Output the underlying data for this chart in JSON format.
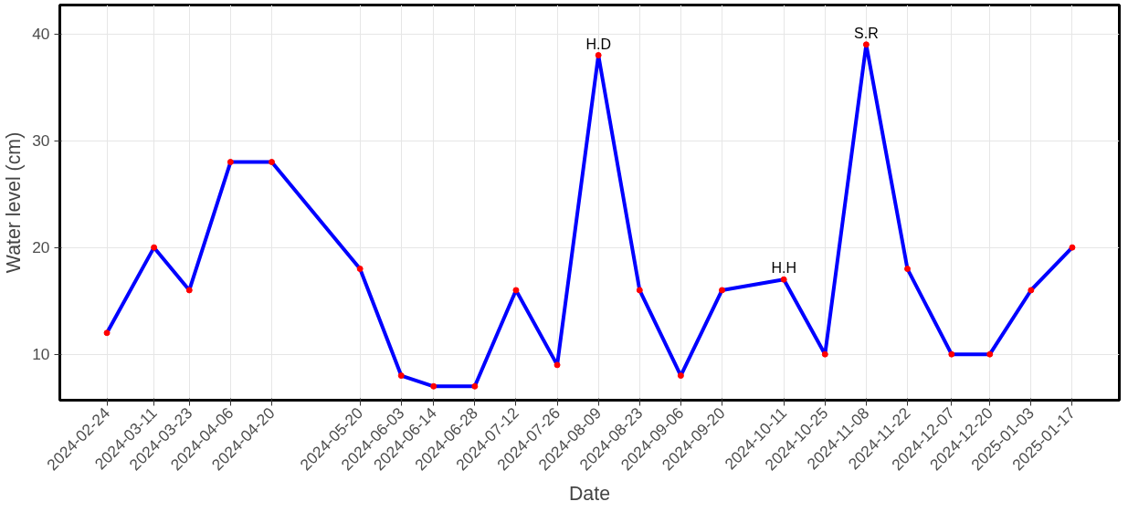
{
  "chart_data": {
    "type": "line",
    "xlabel": "Date",
    "ylabel": "Water level (cm)",
    "x": [
      "2024-02-24",
      "2024-03-11",
      "2024-03-23",
      "2024-04-06",
      "2024-04-20",
      "2024-05-20",
      "2024-06-03",
      "2024-06-14",
      "2024-06-28",
      "2024-07-12",
      "2024-07-26",
      "2024-08-09",
      "2024-08-23",
      "2024-09-06",
      "2024-09-20",
      "2024-10-11",
      "2024-10-25",
      "2024-11-08",
      "2024-11-22",
      "2024-12-07",
      "2024-12-20",
      "2025-01-03",
      "2025-01-17"
    ],
    "series": [
      {
        "color": "#0000ff",
        "colors": [
          "#ff0000",
          "#ff0000",
          "#ff0000",
          "#ff0000",
          "#ff0000",
          "#ff0000",
          "#ff0000",
          "#ff0000",
          "#ff0000",
          "#ff0000",
          "#ff0000",
          "#ff0000",
          "#ff0000",
          "#ff0000",
          "#ff0000",
          "#ff0000",
          "#ff0000",
          "#ff0000",
          "#ff0000",
          "#ff0000",
          "#ff0000",
          "#ff0000",
          "#ff0000"
        ],
        "values": [
          12,
          20,
          16,
          28,
          28,
          18,
          8,
          7,
          7,
          16,
          9,
          38,
          16,
          8,
          16,
          17,
          10,
          39,
          18,
          10,
          10,
          16,
          20
        ]
      }
    ],
    "xlim": [
      "2024-02-08",
      "2025-02-02"
    ],
    "xticks": [
      {
        "value": "2024-02-24",
        "label": "2024-02-24"
      },
      {
        "value": "2024-03-11",
        "label": "2024-03-11"
      },
      {
        "value": "2024-03-23",
        "label": "2024-03-23"
      },
      {
        "value": "2024-04-06",
        "label": "2024-04-06"
      },
      {
        "value": "2024-04-20",
        "label": "2024-04-20"
      },
      {
        "value": "2024-05-20",
        "label": "2024-05-20"
      },
      {
        "value": "2024-06-03",
        "label": "2024-06-03"
      },
      {
        "value": "2024-06-14",
        "label": "2024-06-14"
      },
      {
        "value": "2024-06-28",
        "label": "2024-06-28"
      },
      {
        "value": "2024-07-12",
        "label": "2024-07-12"
      },
      {
        "value": "2024-07-26",
        "label": "2024-07-26"
      },
      {
        "value": "2024-08-09",
        "label": "2024-08-09"
      },
      {
        "value": "2024-08-23",
        "label": "2024-08-23"
      },
      {
        "value": "2024-09-06",
        "label": "2024-09-06"
      },
      {
        "value": "2024-09-20",
        "label": "2024-09-20"
      },
      {
        "value": "2024-10-11",
        "label": "2024-10-11"
      },
      {
        "value": "2024-10-25",
        "label": "2024-10-25"
      },
      {
        "value": "2024-11-08",
        "label": "2024-11-08"
      },
      {
        "value": "2024-11-22",
        "label": "2024-11-22"
      },
      {
        "value": "2024-12-07",
        "label": "2024-12-07"
      },
      {
        "value": "2024-12-20",
        "label": "2024-12-20"
      },
      {
        "value": "2025-01-03",
        "label": "2025-01-03"
      },
      {
        "value": "2025-01-17",
        "label": "2025-01-17"
      }
    ],
    "ylim": [
      5.7,
      42.7
    ],
    "yticks": [
      10,
      20,
      30,
      40
    ],
    "grid": true,
    "marker": "circle",
    "line_style": "solid",
    "annotations": [
      {
        "text": "H.D",
        "x": "2024-08-09",
        "y": 38
      },
      {
        "text": "H.H",
        "x": "2024-10-11",
        "y": 17
      },
      {
        "text": "S.R",
        "x": "2024-11-08",
        "y": 39
      }
    ]
  }
}
